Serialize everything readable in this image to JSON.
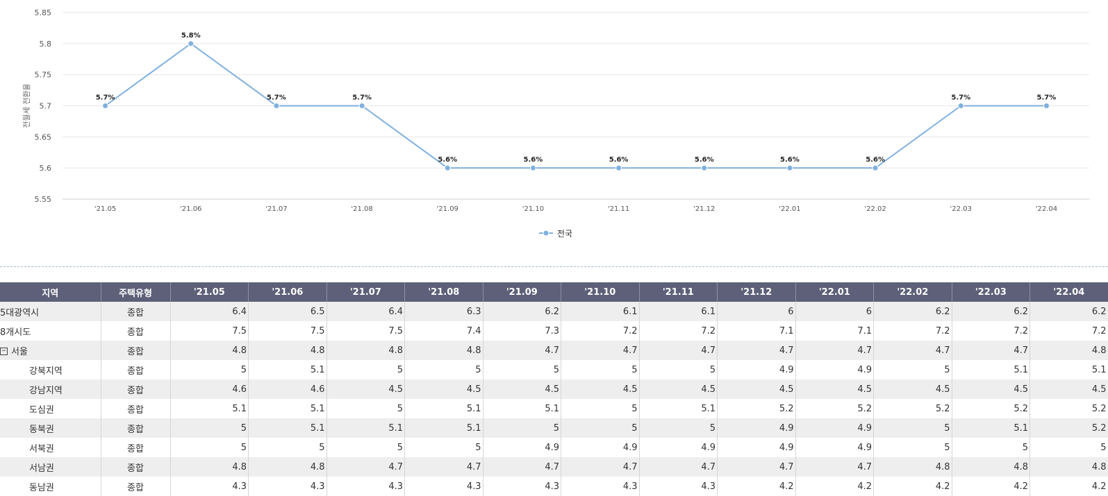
{
  "chart_data": {
    "type": "line",
    "title": "",
    "xlabel": "",
    "ylabel": "전월세 전환율",
    "categories": [
      "'21.05",
      "'21.06",
      "'21.07",
      "'21.08",
      "'21.09",
      "'21.10",
      "'21.11",
      "'21.12",
      "'22.01",
      "'22.02",
      "'22.03",
      "'22.04"
    ],
    "series": [
      {
        "name": "전국",
        "values": [
          5.7,
          5.8,
          5.7,
          5.7,
          5.6,
          5.6,
          5.6,
          5.6,
          5.6,
          5.6,
          5.7,
          5.7
        ],
        "color": "#7fb0de"
      }
    ],
    "data_labels": [
      "5.7%",
      "5.8%",
      "5.7%",
      "5.7%",
      "5.6%",
      "5.6%",
      "5.6%",
      "5.6%",
      "5.6%",
      "5.6%",
      "5.7%",
      "5.7%"
    ],
    "ylim": [
      5.55,
      5.85
    ],
    "yticks": [
      "5.55",
      "5.6",
      "5.65",
      "5.7",
      "5.75",
      "5.8",
      "5.85"
    ],
    "grid": true,
    "legend": "bottom-center"
  },
  "table": {
    "headers": [
      "지역",
      "주택유형",
      "'21.05",
      "'21.06",
      "'21.07",
      "'21.08",
      "'21.09",
      "'21.10",
      "'21.11",
      "'21.12",
      "'22.01",
      "'22.02",
      "'22.03",
      "'22.04"
    ],
    "rows": [
      {
        "region": "5대광역시",
        "type": "종합",
        "values": [
          "6.4",
          "6.5",
          "6.4",
          "6.3",
          "6.2",
          "6.1",
          "6.1",
          "6",
          "6",
          "6.2",
          "6.2",
          "6.2"
        ]
      },
      {
        "region": "8개시도",
        "type": "종합",
        "values": [
          "7.5",
          "7.5",
          "7.5",
          "7.4",
          "7.3",
          "7.2",
          "7.2",
          "7.1",
          "7.1",
          "7.2",
          "7.2",
          "7.2"
        ]
      },
      {
        "region": "서울",
        "type": "종합",
        "toggle": "⊟",
        "values": [
          "4.8",
          "4.8",
          "4.8",
          "4.8",
          "4.7",
          "4.7",
          "4.7",
          "4.7",
          "4.7",
          "4.7",
          "4.7",
          "4.8"
        ]
      },
      {
        "region": "강북지역",
        "type": "종합",
        "sub": true,
        "values": [
          "5",
          "5.1",
          "5",
          "5",
          "5",
          "5",
          "5",
          "4.9",
          "4.9",
          "5",
          "5.1",
          "5.1"
        ]
      },
      {
        "region": "강남지역",
        "type": "종합",
        "sub": true,
        "values": [
          "4.6",
          "4.6",
          "4.5",
          "4.5",
          "4.5",
          "4.5",
          "4.5",
          "4.5",
          "4.5",
          "4.5",
          "4.5",
          "4.5"
        ]
      },
      {
        "region": "도심권",
        "type": "종합",
        "sub": true,
        "values": [
          "5.1",
          "5.1",
          "5",
          "5.1",
          "5.1",
          "5",
          "5.1",
          "5.2",
          "5.2",
          "5.2",
          "5.2",
          "5.2"
        ]
      },
      {
        "region": "동북권",
        "type": "종합",
        "sub": true,
        "values": [
          "5",
          "5.1",
          "5.1",
          "5.1",
          "5",
          "5",
          "5",
          "4.9",
          "4.9",
          "5",
          "5.1",
          "5.2"
        ]
      },
      {
        "region": "서북권",
        "type": "종합",
        "sub": true,
        "values": [
          "5",
          "5",
          "5",
          "5",
          "4.9",
          "4.9",
          "4.9",
          "4.9",
          "4.9",
          "5",
          "5",
          "5"
        ]
      },
      {
        "region": "서남권",
        "type": "종합",
        "sub": true,
        "values": [
          "4.8",
          "4.8",
          "4.7",
          "4.7",
          "4.7",
          "4.7",
          "4.7",
          "4.7",
          "4.7",
          "4.8",
          "4.8",
          "4.8"
        ]
      },
      {
        "region": "동남권",
        "type": "종합",
        "sub": true,
        "values": [
          "4.3",
          "4.3",
          "4.3",
          "4.3",
          "4.3",
          "4.3",
          "4.3",
          "4.2",
          "4.2",
          "4.2",
          "4.2",
          "4.2"
        ]
      }
    ]
  }
}
